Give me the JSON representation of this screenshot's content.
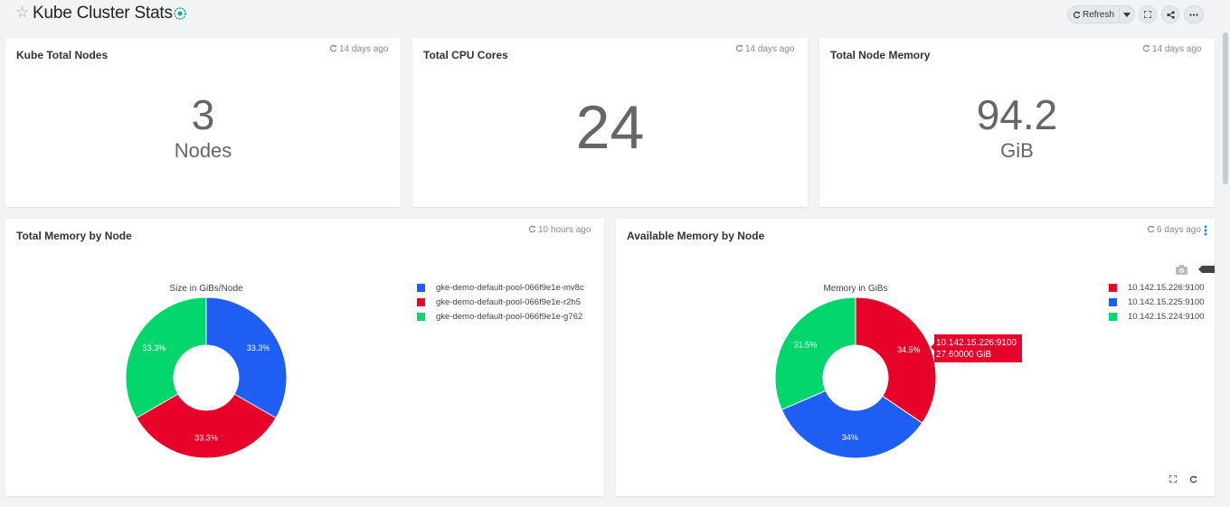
{
  "dashboard": {
    "title": "Kube Cluster Stats",
    "refresh_label": "Refresh",
    "buttons": {
      "fullscreen": "fullscreen-icon",
      "share": "share-icon",
      "more": "more-icon"
    }
  },
  "cards": {
    "nodes": {
      "title": "Kube Total Nodes",
      "updated": "14 days ago",
      "value": "3",
      "unit": "Nodes"
    },
    "cpu": {
      "title": "Total CPU Cores",
      "updated": "14 days ago",
      "value": "24",
      "unit": ""
    },
    "memory": {
      "title": "Total Node Memory",
      "updated": "14 days ago",
      "value": "94.2",
      "unit": "GiB"
    },
    "mem_by_node": {
      "title": "Total Memory by Node",
      "updated": "10 hours ago"
    },
    "avail_by_node": {
      "title": "Available Memory by Node",
      "updated": "6 days ago",
      "tooltip": {
        "line1": "10.142.15.226:9100",
        "line2": "27.60000 GiB"
      }
    }
  },
  "colors": {
    "blue": "#1f5ef2",
    "red": "#e8022a",
    "green": "#02d66d"
  },
  "chart_data": [
    {
      "type": "pie",
      "title": "Size in GiBs/Node",
      "categories": [
        "gke-demo-default-pool-066f9e1e-mv8c",
        "gke-demo-default-pool-066f9e1e-r2h5",
        "gke-demo-default-pool-066f9e1e-g762"
      ],
      "values": [
        33.3,
        33.3,
        33.3
      ],
      "labels": [
        "33.3%",
        "33.3%",
        "33.3%"
      ],
      "colors": [
        "#1f5ef2",
        "#e8022a",
        "#02d66d"
      ],
      "legend": "top-right"
    },
    {
      "type": "pie",
      "title": "Memory in GiBs",
      "categories": [
        "10.142.15.226:9100",
        "10.142.15.225:9100",
        "10.142.15.224:9100"
      ],
      "values": [
        34.5,
        34,
        31.5
      ],
      "labels": [
        "34.5%",
        "34%",
        "31.5%"
      ],
      "colors": [
        "#e8022a",
        "#1f5ef2",
        "#02d66d"
      ],
      "legend": "top-right"
    }
  ]
}
